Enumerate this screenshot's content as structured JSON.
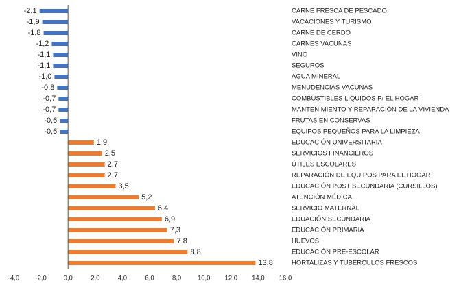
{
  "chart_data": {
    "type": "hbar",
    "categories": [
      "CARNE FRESCA DE PESCADO",
      "VACACIONES Y TURISMO",
      "CARNE DE CERDO",
      "CARNES VACUNAS",
      "VINO",
      "SEGUROS",
      "AGUA MINERAL",
      "MENUDENCIAS VACUNAS",
      "COMBUSTIBLES LÍQUIDOS P/ EL HOGAR",
      "MANTENIMIENTO Y REPARACIÓN DE LA VIVIENDA",
      "FRUTAS EN CONSERVAS",
      "EQUIPOS PEQUEÑOS PARA LA LIMPIEZA",
      "EDUCACIÓN UNIVERSITARIA",
      "SERVICIOS FINANCIEROS",
      "ÚTILES ESCOLARES",
      "REPARACIÓN DE EQUIPOS PARA EL HOGAR",
      "EDUCACIÓN POST SECUNDARIA (CURSILLOS)",
      "ATENCIÓN MÉDICA",
      "SERVICIO MATERNAL",
      "EDUACIÓN SECUNDARIA",
      "EDUCACIÓN PRIMARIA",
      "HUEVOS",
      "EDUCACIÓN PRE-ESCOLAR",
      "HORTALIZAS Y TUBÉRCULOS FRESCOS"
    ],
    "values": [
      -2.1,
      -1.9,
      -1.8,
      -1.2,
      -1.1,
      -1.1,
      -1.0,
      -0.8,
      -0.7,
      -0.7,
      -0.6,
      -0.6,
      1.9,
      2.5,
      2.7,
      2.7,
      3.5,
      5.2,
      6.4,
      6.9,
      7.3,
      7.8,
      8.8,
      13.8
    ],
    "value_labels": [
      "-2,1",
      "-1,9",
      "-1,8",
      "-1,2",
      "-1,1",
      "-1,1",
      "-1,0",
      "-0,8",
      "-0,7",
      "-0,7",
      "-0,6",
      "-0,6",
      "1,9",
      "2,5",
      "2,7",
      "2,7",
      "3,5",
      "5,2",
      "6,4",
      "6,9",
      "7,3",
      "7,8",
      "8,8",
      "13,8"
    ],
    "negative_color": "#4472c4",
    "positive_color": "#ed7d31",
    "xlim": [
      -4,
      16
    ],
    "xticks": [
      {
        "value": -4,
        "label": "-4,0"
      },
      {
        "value": -2,
        "label": "-2,0"
      },
      {
        "value": 0,
        "label": "0,0"
      },
      {
        "value": 2,
        "label": "2,0"
      },
      {
        "value": 4,
        "label": "4,0"
      },
      {
        "value": 6,
        "label": "6,0"
      },
      {
        "value": 8,
        "label": "8,0"
      },
      {
        "value": 10,
        "label": "10,0"
      },
      {
        "value": 12,
        "label": "12,0"
      },
      {
        "value": 14,
        "label": "14,0"
      },
      {
        "value": 16,
        "label": "16,0"
      }
    ],
    "grid": false
  }
}
